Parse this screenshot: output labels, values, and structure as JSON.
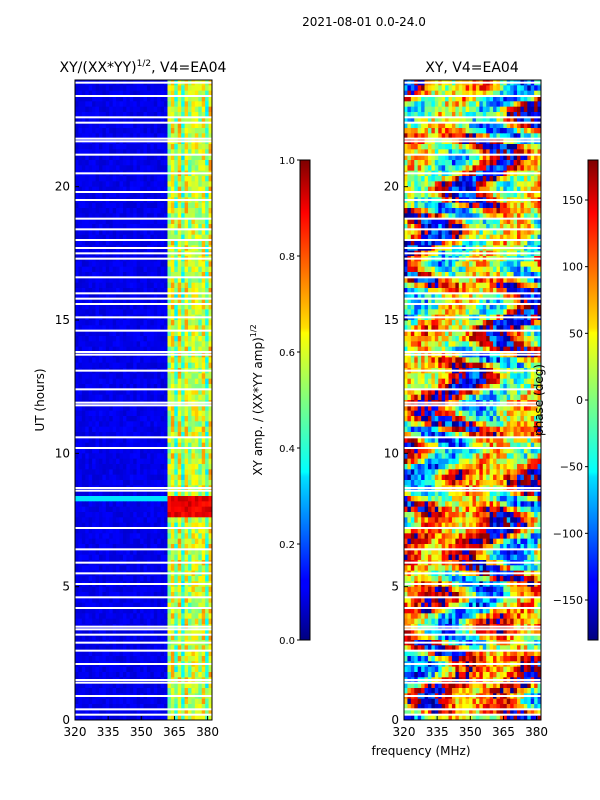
{
  "figure_title": "2021-08-01 0.0-24.0",
  "xlabel": "frequency (MHz)",
  "chart_data": [
    {
      "type": "heatmap",
      "title": "XY/(XX*YY)",
      "title_superscript": "1/2",
      "title_suffix": ", V4=EA04",
      "ylabel": "UT (hours)",
      "xlim": [
        320,
        382
      ],
      "ylim": [
        0,
        24
      ],
      "xticks": [
        "320",
        "335",
        "350",
        "365",
        "380"
      ],
      "yticks": [
        "0",
        "5",
        "10",
        "15",
        "20"
      ],
      "colormap": "jet",
      "colorbar": {
        "label": "XY amp. / (XX*YY amp)",
        "label_superscript": "1/2",
        "range": [
          0.0,
          1.0
        ],
        "ticks": [
          "0.0",
          "0.2",
          "0.4",
          "0.6",
          "0.8",
          "1.0"
        ]
      }
    },
    {
      "type": "heatmap",
      "title": "XY, V4=EA04",
      "xlim": [
        320,
        382
      ],
      "ylim": [
        0,
        24
      ],
      "xticks": [
        "320",
        "335",
        "350",
        "365",
        "380"
      ],
      "yticks": [
        "0",
        "5",
        "10",
        "15",
        "20"
      ],
      "colormap": "jet",
      "colorbar": {
        "label": "phase (deg)",
        "range": [
          -180,
          180
        ],
        "ticks": [
          "150",
          "100",
          "50",
          "0",
          "−50",
          "−100",
          "−150"
        ]
      }
    }
  ]
}
